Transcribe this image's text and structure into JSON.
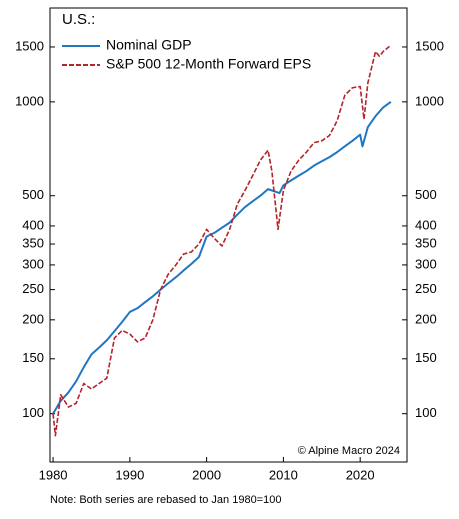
{
  "chart_data": {
    "type": "line",
    "title": "U.S.:",
    "note": "Note: Both series are rebased to Jan 1980=100",
    "annotation": "© Alpine Macro 2024",
    "log_scale": true,
    "legend": "upper left",
    "xlim": [
      1979.6,
      2026.1
    ],
    "xticks": [
      1980,
      1990,
      2000,
      2010,
      2020
    ],
    "ylim": [
      70,
      2000
    ],
    "yticks": [
      100,
      150,
      200,
      250,
      300,
      350,
      400,
      500,
      1000,
      1500
    ],
    "series": [
      {
        "name": "Nominal GDP",
        "color": "#1f77c4",
        "style": "solid",
        "x": [
          1980,
          1981,
          1982,
          1983,
          1984,
          1985,
          1986,
          1987,
          1988,
          1989,
          1990,
          1991,
          1992,
          1993,
          1994,
          1995,
          1996,
          1997,
          1998,
          1999,
          2000,
          2001,
          2002,
          2003,
          2004,
          2005,
          2006,
          2007,
          2008,
          2009.5,
          2010,
          2011,
          2012,
          2013,
          2014,
          2015,
          2016,
          2017,
          2018,
          2019,
          2020,
          2020.3,
          2021,
          2022,
          2023,
          2024
        ],
        "values": [
          100,
          110,
          117,
          127,
          141,
          155,
          163,
          172,
          184,
          197,
          212,
          218,
          228,
          238,
          250,
          262,
          274,
          288,
          302,
          318,
          370,
          380,
          395,
          410,
          435,
          460,
          480,
          500,
          525,
          510,
          540,
          560,
          580,
          600,
          625,
          645,
          665,
          690,
          720,
          750,
          785,
          720,
          830,
          900,
          960,
          1000
        ]
      },
      {
        "name": "S&P 500 12-Month Forward EPS",
        "color": "#b5232b",
        "style": "dashed",
        "x": [
          1980,
          1980.3,
          1981,
          1982,
          1983,
          1984,
          1985,
          1986,
          1987,
          1988,
          1989,
          1990,
          1991,
          1992,
          1993,
          1994,
          1995,
          1996,
          1997,
          1998,
          1999,
          2000,
          2001,
          2002,
          2003,
          2004,
          2005,
          2006,
          2007,
          2008,
          2008.5,
          2009.3,
          2010,
          2011,
          2012,
          2013,
          2014,
          2015,
          2016,
          2017,
          2018,
          2019,
          2020,
          2020.5,
          2021,
          2022,
          2022.5,
          2023,
          2024
        ],
        "values": [
          100,
          85,
          115,
          105,
          108,
          125,
          120,
          125,
          130,
          175,
          185,
          180,
          170,
          175,
          200,
          250,
          280,
          300,
          325,
          330,
          350,
          390,
          365,
          345,
          390,
          470,
          520,
          580,
          650,
          700,
          600,
          390,
          520,
          600,
          650,
          690,
          740,
          750,
          780,
          870,
          1050,
          1110,
          1120,
          880,
          1150,
          1450,
          1400,
          1450,
          1520
        ]
      }
    ]
  }
}
